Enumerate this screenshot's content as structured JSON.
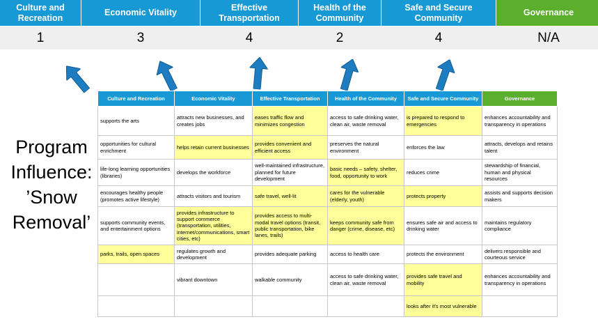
{
  "title": "Program Influence: ’Snow Removal’",
  "colors": {
    "header_blue": "#1799D5",
    "header_green": "#5BAF2C",
    "highlight": "#FFFF99",
    "arrow_fill": "#1E7CC0",
    "arrow_stroke": "#0F5C95",
    "score_band_bg": "#EFEFEF",
    "grid_line": "#C8C8C8"
  },
  "scorecard": {
    "columns": [
      {
        "label": "Culture and Recreation",
        "score": "1",
        "theme": "blue"
      },
      {
        "label": "Economic Vitality",
        "score": "3",
        "theme": "blue"
      },
      {
        "label": "Effective Transportation",
        "score": "4",
        "theme": "blue"
      },
      {
        "label": "Health of the Community",
        "score": "2",
        "theme": "blue"
      },
      {
        "label": "Safe and Secure Community",
        "score": "4",
        "theme": "blue"
      },
      {
        "label": "Governance",
        "score": "N/A",
        "theme": "green"
      }
    ]
  },
  "matrix": {
    "headers": [
      {
        "label": "Culture and Recreation",
        "theme": "blue"
      },
      {
        "label": "Economic Vitality",
        "theme": "blue"
      },
      {
        "label": "Effective Transportation",
        "theme": "blue"
      },
      {
        "label": "Health of the Community",
        "theme": "blue"
      },
      {
        "label": "Safe and Secure Community",
        "theme": "blue"
      },
      {
        "label": "Governance",
        "theme": "green"
      }
    ],
    "rows": [
      [
        {
          "text": "supports the arts",
          "highlight": false
        },
        {
          "text": "attracts new businesses, and creates jobs",
          "highlight": false
        },
        {
          "text": "eases traffic flow and minimizes congestion",
          "highlight": true
        },
        {
          "text": "access to safe drinking water, clean air, waste removal",
          "highlight": false
        },
        {
          "text": "is prepared to respond to emergencies",
          "highlight": true
        },
        {
          "text": "enhances accountability and transparency in operations",
          "highlight": false
        }
      ],
      [
        {
          "text": "opportunities for cultural enrichment",
          "highlight": false
        },
        {
          "text": "helps retain current businesses",
          "highlight": true
        },
        {
          "text": "provides convenient and efficient access",
          "highlight": true
        },
        {
          "text": "preserves the natural environment",
          "highlight": false
        },
        {
          "text": "enforces the law",
          "highlight": false
        },
        {
          "text": "attracts, develops and retains talent",
          "highlight": false
        }
      ],
      [
        {
          "text": "life-long learning opportunities (libraries)",
          "highlight": false
        },
        {
          "text": "develops the workforce",
          "highlight": false
        },
        {
          "text": "well-maintained infrastructure, planned for future development",
          "highlight": false
        },
        {
          "text": "basic needs – safety, shelter, food, opportunity to work",
          "highlight": true
        },
        {
          "text": "reduces crime",
          "highlight": false
        },
        {
          "text": "stewardship of financial, human and physical resources",
          "highlight": false
        }
      ],
      [
        {
          "text": "encourages healthy people (promotes active lifestyle)",
          "highlight": false
        },
        {
          "text": "attracts visitors and tourism",
          "highlight": false
        },
        {
          "text": "safe travel, well-lit",
          "highlight": true
        },
        {
          "text": "cares for the vulnerable (elderly, youth)",
          "highlight": true
        },
        {
          "text": "protects property",
          "highlight": true
        },
        {
          "text": "assists and supports decision makers",
          "highlight": false
        }
      ],
      [
        {
          "text": "supports community events, and entertainment options",
          "highlight": false
        },
        {
          "text": "provides infrastructure to support commerce (transportation, utilities, internet/communications, smart cities, etc)",
          "highlight": true
        },
        {
          "text": "provides access to multi-modal travel options (transit, public transportation, bike lanes, trails)",
          "highlight": true
        },
        {
          "text": "keeps community safe from danger (crime, disease, etc)",
          "highlight": true
        },
        {
          "text": "ensures safe air and access to drinking water",
          "highlight": false
        },
        {
          "text": "maintains regulatory compliance",
          "highlight": false
        }
      ],
      [
        {
          "text": "parks, trails, open spaces",
          "highlight": true
        },
        {
          "text": "regulates growth and development",
          "highlight": false
        },
        {
          "text": "provides adequate parking",
          "highlight": false
        },
        {
          "text": "access to health care",
          "highlight": false
        },
        {
          "text": "protects the environment",
          "highlight": false
        },
        {
          "text": "delivers responsible and courteous service",
          "highlight": false
        }
      ],
      [
        {
          "text": "",
          "highlight": false
        },
        {
          "text": "vibrant downtown",
          "highlight": false
        },
        {
          "text": "walkable community",
          "highlight": false
        },
        {
          "text": "access to safe drinking water, clean air, waste removal",
          "highlight": false
        },
        {
          "text": "provides safe travel and mobility",
          "highlight": true
        },
        {
          "text": "enhances accountability and transparency in operations",
          "highlight": false
        }
      ],
      [
        {
          "text": "",
          "highlight": false
        },
        {
          "text": "",
          "highlight": false
        },
        {
          "text": "",
          "highlight": false
        },
        {
          "text": "",
          "highlight": false
        },
        {
          "text": "looks after it's most vulnerable",
          "highlight": true
        },
        {
          "text": "",
          "highlight": false
        }
      ]
    ]
  }
}
